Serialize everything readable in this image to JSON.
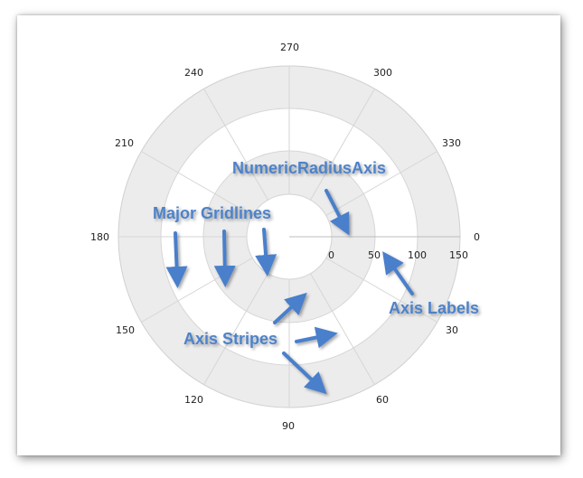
{
  "diagram": {
    "angle_axis_labels": [
      "0",
      "30",
      "60",
      "90",
      "120",
      "150",
      "180",
      "210",
      "240",
      "270",
      "300",
      "330"
    ],
    "radius_axis_labels": [
      "0",
      "50",
      "100",
      "150"
    ],
    "callouts": {
      "radius_axis": "NumericRadiusAxis",
      "gridlines": "Major Gridlines",
      "axis_labels": "Axis Labels",
      "axis_stripes": "Axis Stripes"
    },
    "colors": {
      "stripe": "#ececec",
      "gridline": "#d6d6d6",
      "callout": "#4d82c9",
      "arrow": "#4a7fcb"
    }
  }
}
